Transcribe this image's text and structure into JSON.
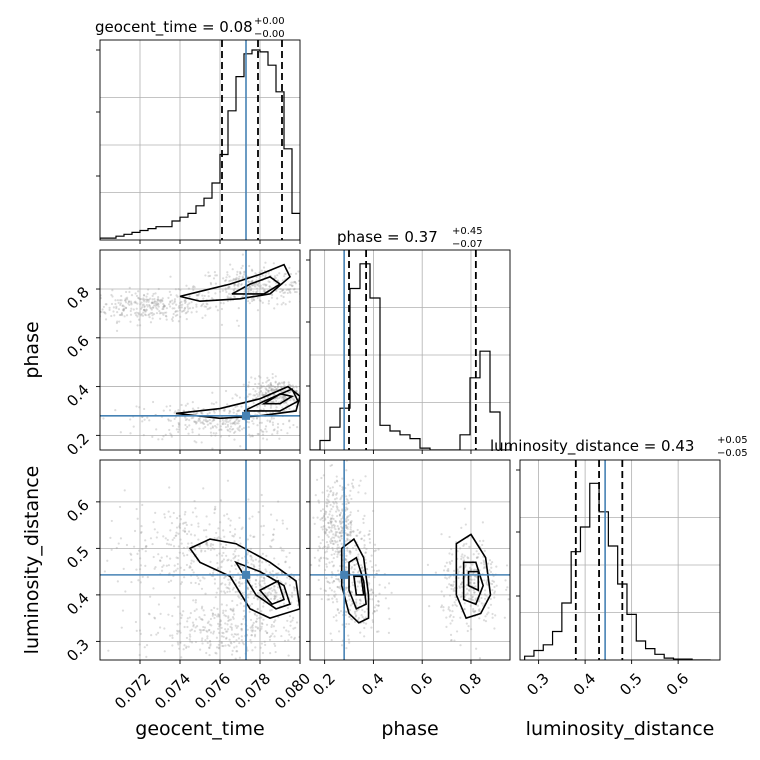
{
  "chart_data": {
    "type": "corner",
    "parameters": [
      "geocent_time",
      "phase",
      "luminosity_distance"
    ],
    "titles": [
      {
        "text": "geocent_time = 0.08",
        "plus": "+0.00",
        "minus": "−0.00"
      },
      {
        "text": "phase = 0.37",
        "plus": "+0.45",
        "minus": "−0.07"
      },
      {
        "text": "luminosity_distance = 0.43",
        "plus": "+0.05",
        "minus": "−0.05"
      }
    ],
    "ranges": [
      [
        0.07,
        0.08
      ],
      [
        0.14,
        0.96
      ],
      [
        0.26,
        0.69
      ]
    ],
    "ticks": [
      {
        "values": [
          0.072,
          0.074,
          0.076,
          0.078,
          0.08
        ],
        "labels": [
          "0.072",
          "0.074",
          "0.076",
          "0.078",
          "0.080"
        ]
      },
      {
        "values": [
          0.2,
          0.4,
          0.6,
          0.8
        ],
        "labels": [
          "0.2",
          "0.4",
          "0.6",
          "0.8"
        ]
      },
      {
        "values": [
          0.3,
          0.4,
          0.5,
          0.6
        ],
        "labels": [
          "0.3",
          "0.4",
          "0.5",
          "0.6"
        ]
      }
    ],
    "truths": [
      0.0773,
      0.28,
      0.443
    ],
    "quantiles": [
      [
        0.0761,
        0.0779,
        0.0791
      ],
      [
        0.3,
        0.37,
        0.82
      ],
      [
        0.38,
        0.43,
        0.48
      ]
    ],
    "histograms": [
      {
        "bin_start": 0.07,
        "bin_width": 0.0004,
        "counts": [
          0.01,
          0.01,
          0.02,
          0.03,
          0.04,
          0.05,
          0.06,
          0.07,
          0.07,
          0.1,
          0.12,
          0.14,
          0.18,
          0.22,
          0.3,
          0.45,
          0.68,
          0.86,
          0.98,
          1.0,
          0.99,
          0.92,
          0.78,
          0.48,
          0.14
        ]
      },
      {
        "bin_start": 0.14,
        "bin_width": 0.041,
        "counts": [
          0.0,
          0.05,
          0.12,
          0.22,
          0.85,
          0.98,
          0.8,
          0.13,
          0.1,
          0.08,
          0.06,
          0.01,
          0.0,
          0.0,
          0.0,
          0.08,
          0.38,
          0.52,
          0.2,
          0.0
        ]
      },
      {
        "bin_start": 0.27,
        "bin_width": 0.02,
        "counts": [
          0.02,
          0.05,
          0.08,
          0.15,
          0.3,
          0.57,
          0.7,
          0.93,
          0.78,
          0.6,
          0.4,
          0.24,
          0.1,
          0.06,
          0.03,
          0.01,
          0.005,
          0.005,
          0.0,
          0.0
        ]
      }
    ],
    "clouds": [
      {
        "x": 0,
        "y": 1,
        "blobs": [
          [
            0.0725,
            0.73,
            0.0016,
            0.03
          ],
          [
            0.0778,
            0.81,
            0.0015,
            0.04
          ],
          [
            0.076,
            0.26,
            0.002,
            0.04
          ],
          [
            0.079,
            0.37,
            0.0009,
            0.03
          ]
        ]
      },
      {
        "x": 0,
        "y": 2,
        "blobs": [
          [
            0.0745,
            0.5,
            0.0022,
            0.05
          ],
          [
            0.078,
            0.42,
            0.0012,
            0.04
          ],
          [
            0.076,
            0.32,
            0.002,
            0.03
          ]
        ]
      },
      {
        "x": 1,
        "y": 2,
        "blobs": [
          [
            0.32,
            0.42,
            0.06,
            0.06
          ],
          [
            0.8,
            0.42,
            0.06,
            0.05
          ],
          [
            0.25,
            0.55,
            0.05,
            0.05
          ]
        ]
      }
    ],
    "contours": [
      {
        "x": 0,
        "y": 1,
        "paths": [
          [
            [
              0.074,
              0.77
            ],
            [
              0.075,
              0.79
            ],
            [
              0.0765,
              0.82
            ],
            [
              0.078,
              0.86
            ],
            [
              0.0792,
              0.9
            ],
            [
              0.0795,
              0.85
            ],
            [
              0.0785,
              0.78
            ],
            [
              0.077,
              0.76
            ],
            [
              0.075,
              0.75
            ],
            [
              0.074,
              0.77
            ]
          ],
          [
            [
              0.0766,
              0.78
            ],
            [
              0.0775,
              0.82
            ],
            [
              0.0785,
              0.85
            ],
            [
              0.079,
              0.82
            ],
            [
              0.0782,
              0.78
            ],
            [
              0.0766,
              0.78
            ]
          ],
          [
            [
              0.0738,
              0.29
            ],
            [
              0.076,
              0.31
            ],
            [
              0.078,
              0.35
            ],
            [
              0.0794,
              0.4
            ],
            [
              0.08,
              0.36
            ],
            [
              0.0798,
              0.3
            ],
            [
              0.078,
              0.28
            ],
            [
              0.076,
              0.27
            ],
            [
              0.0738,
              0.29
            ]
          ],
          [
            [
              0.0772,
              0.3
            ],
            [
              0.0782,
              0.34
            ],
            [
              0.0796,
              0.39
            ],
            [
              0.0799,
              0.34
            ],
            [
              0.079,
              0.3
            ],
            [
              0.0772,
              0.3
            ]
          ],
          [
            [
              0.0782,
              0.33
            ],
            [
              0.079,
              0.37
            ],
            [
              0.0796,
              0.36
            ],
            [
              0.079,
              0.33
            ],
            [
              0.0782,
              0.33
            ]
          ]
        ]
      },
      {
        "x": 0,
        "y": 2,
        "paths": [
          [
            [
              0.0745,
              0.5
            ],
            [
              0.0755,
              0.52
            ],
            [
              0.0768,
              0.51
            ],
            [
              0.0785,
              0.47
            ],
            [
              0.0798,
              0.43
            ],
            [
              0.08,
              0.37
            ],
            [
              0.0785,
              0.35
            ],
            [
              0.0775,
              0.37
            ],
            [
              0.0765,
              0.44
            ],
            [
              0.075,
              0.47
            ],
            [
              0.0745,
              0.5
            ]
          ],
          [
            [
              0.0768,
              0.47
            ],
            [
              0.078,
              0.45
            ],
            [
              0.0792,
              0.42
            ],
            [
              0.0795,
              0.38
            ],
            [
              0.0788,
              0.37
            ],
            [
              0.0778,
              0.4
            ],
            [
              0.0768,
              0.47
            ]
          ],
          [
            [
              0.078,
              0.41
            ],
            [
              0.0789,
              0.43
            ],
            [
              0.0792,
              0.39
            ],
            [
              0.0786,
              0.38
            ],
            [
              0.078,
              0.41
            ]
          ]
        ]
      },
      {
        "x": 1,
        "y": 2,
        "paths": [
          [
            [
              0.27,
              0.5
            ],
            [
              0.32,
              0.52
            ],
            [
              0.36,
              0.48
            ],
            [
              0.38,
              0.4
            ],
            [
              0.38,
              0.35
            ],
            [
              0.34,
              0.34
            ],
            [
              0.3,
              0.36
            ],
            [
              0.27,
              0.42
            ],
            [
              0.27,
              0.5
            ]
          ],
          [
            [
              0.3,
              0.47
            ],
            [
              0.33,
              0.48
            ],
            [
              0.36,
              0.43
            ],
            [
              0.37,
              0.38
            ],
            [
              0.33,
              0.37
            ],
            [
              0.3,
              0.41
            ],
            [
              0.3,
              0.47
            ]
          ],
          [
            [
              0.32,
              0.44
            ],
            [
              0.35,
              0.44
            ],
            [
              0.36,
              0.4
            ],
            [
              0.33,
              0.4
            ],
            [
              0.32,
              0.44
            ]
          ],
          [
            [
              0.74,
              0.51
            ],
            [
              0.8,
              0.53
            ],
            [
              0.86,
              0.48
            ],
            [
              0.88,
              0.4
            ],
            [
              0.84,
              0.36
            ],
            [
              0.78,
              0.35
            ],
            [
              0.74,
              0.4
            ],
            [
              0.74,
              0.51
            ]
          ],
          [
            [
              0.77,
              0.47
            ],
            [
              0.82,
              0.47
            ],
            [
              0.85,
              0.42
            ],
            [
              0.82,
              0.38
            ],
            [
              0.77,
              0.39
            ],
            [
              0.77,
              0.47
            ]
          ],
          [
            [
              0.79,
              0.45
            ],
            [
              0.83,
              0.45
            ],
            [
              0.83,
              0.41
            ],
            [
              0.79,
              0.42
            ],
            [
              0.79,
              0.45
            ]
          ]
        ]
      }
    ],
    "grid": true
  }
}
